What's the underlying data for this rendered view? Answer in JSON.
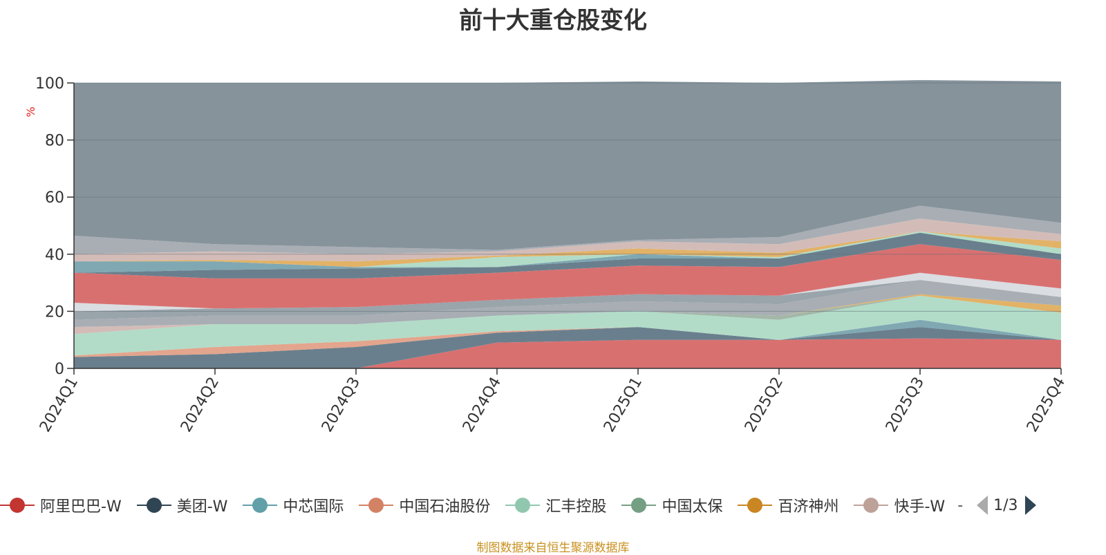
{
  "chart_data": {
    "type": "area",
    "stacked": true,
    "title": "前十大重仓股变化",
    "ylabel": "%",
    "ylim": [
      0,
      100
    ],
    "yticks": [
      0,
      20,
      40,
      60,
      80,
      100
    ],
    "grid": true,
    "categories": [
      "2024Q1",
      "2024Q2",
      "2024Q3",
      "2024Q4",
      "2025Q1",
      "2025Q2",
      "2025Q3",
      "2025Q4"
    ],
    "series": [
      {
        "name": "阿里巴巴-W",
        "color": "#d97070",
        "values": [
          0,
          0,
          0,
          9,
          10,
          10,
          10.5,
          10
        ]
      },
      {
        "name": "美团-W",
        "color": "#6a7f8d",
        "values": [
          4,
          5,
          7.5,
          3.5,
          4.5,
          0,
          4,
          0
        ]
      },
      {
        "name": "中芯国际",
        "color": "#7fa8b3",
        "values": [
          0,
          0,
          0,
          0,
          0,
          0,
          2.5,
          0
        ]
      },
      {
        "name": "中国石油股份",
        "color": "#e3a58d",
        "values": [
          0.5,
          2.5,
          2,
          0.5,
          0,
          0,
          0,
          0
        ]
      },
      {
        "name": "汇丰控股",
        "color": "#b2dcc8",
        "values": [
          7.5,
          8,
          6,
          5.5,
          5.5,
          7,
          8.5,
          9.5
        ]
      },
      {
        "name": "中国太保",
        "color": "#a4b7a9",
        "values": [
          0,
          0,
          0,
          0,
          0,
          1.5,
          0,
          0
        ]
      },
      {
        "name": "百济神州",
        "color": "#e2b267",
        "values": [
          0,
          0,
          0,
          0,
          0,
          0,
          0.5,
          2.5
        ]
      },
      {
        "name": "快手-W",
        "color": "#d3bcb8",
        "values": [
          2.5,
          0,
          0,
          0,
          0,
          0,
          0,
          0
        ]
      },
      {
        "name": "",
        "color": "#a8aeb4",
        "values": [
          2.5,
          3,
          3,
          3,
          3.5,
          4,
          5,
          3
        ]
      },
      {
        "name": "",
        "color": "#9aa4ab",
        "values": [
          3,
          2.5,
          3,
          2.5,
          2.5,
          3,
          0,
          0
        ]
      },
      {
        "name": "",
        "color": "#dadde1",
        "values": [
          3,
          0,
          0,
          0,
          0,
          0,
          2.5,
          3
        ]
      },
      {
        "name": "",
        "color": "#d97070",
        "values": [
          10.5,
          10.5,
          10,
          9.5,
          10,
          10,
          10,
          10
        ]
      },
      {
        "name": "",
        "color": "#6a7f8d",
        "values": [
          0,
          3,
          3.5,
          2,
          2.5,
          3,
          4,
          2
        ]
      },
      {
        "name": "",
        "color": "#7fa8b3",
        "values": [
          4,
          3,
          0.5,
          0,
          1.5,
          0,
          0,
          0
        ]
      },
      {
        "name": "",
        "color": "#b2dcc8",
        "values": [
          0,
          0,
          0,
          3.5,
          0,
          0.5,
          0.5,
          2
        ]
      },
      {
        "name": "",
        "color": "#e2b267",
        "values": [
          0,
          0.5,
          2,
          0.5,
          2,
          1.5,
          0,
          2.5
        ]
      },
      {
        "name": "",
        "color": "#d3bcb8",
        "values": [
          2.5,
          3,
          2.5,
          1.5,
          2.5,
          3,
          4.5,
          2.5
        ]
      },
      {
        "name": "",
        "color": "#a8aeb4",
        "values": [
          6.5,
          2.5,
          2.5,
          0.5,
          0.5,
          2.5,
          4.5,
          4
        ]
      },
      {
        "name": "",
        "color": "#86939b",
        "values": [
          53.5,
          56.5,
          57.5,
          58.5,
          55.5,
          54,
          44,
          49.5
        ]
      }
    ]
  },
  "legend": {
    "items": [
      {
        "label": "阿里巴巴-W",
        "color": "#c23531"
      },
      {
        "label": "美团-W",
        "color": "#2f4554"
      },
      {
        "label": "中芯国际",
        "color": "#61a0a8"
      },
      {
        "label": "中国石油股份",
        "color": "#d48265"
      },
      {
        "label": "汇丰控股",
        "color": "#91c7ae"
      },
      {
        "label": "中国太保",
        "color": "#749f83"
      },
      {
        "label": "百济神州",
        "color": "#ca8622"
      },
      {
        "label": "快手-W",
        "color": "#bda29a"
      }
    ],
    "more": "-",
    "page": "1/3"
  },
  "footer": {
    "source": "制图数据来自恒生聚源数据库"
  }
}
